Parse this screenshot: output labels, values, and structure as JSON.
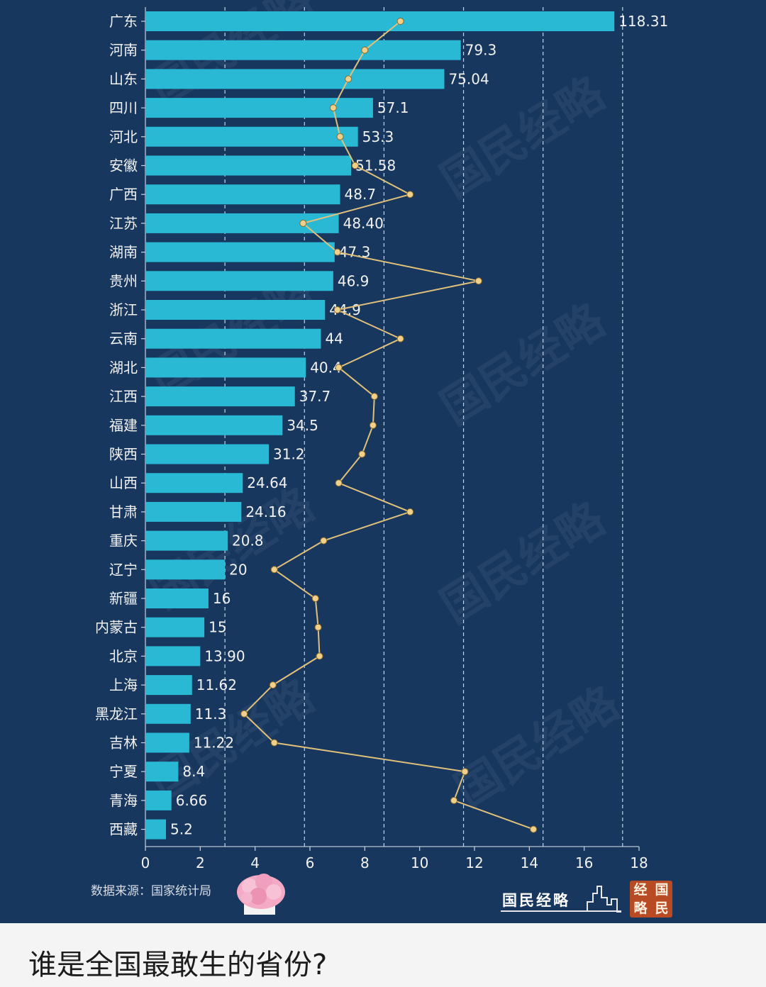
{
  "chart_data": {
    "type": "bar",
    "orientation": "horizontal",
    "categories": [
      "广东",
      "河南",
      "山东",
      "四川",
      "河北",
      "安徽",
      "广西",
      "江苏",
      "湖南",
      "贵州",
      "浙江",
      "云南",
      "湖北",
      "江西",
      "福建",
      "陕西",
      "山西",
      "甘肃",
      "重庆",
      "辽宁",
      "新疆",
      "内蒙古",
      "北京",
      "上海",
      "黑龙江",
      "吉林",
      "宁夏",
      "青海",
      "西藏"
    ],
    "values": [
      17.1,
      11.5,
      10.9,
      8.3,
      7.75,
      7.5,
      7.1,
      7.05,
      6.9,
      6.85,
      6.55,
      6.4,
      5.85,
      5.45,
      5.0,
      4.5,
      3.55,
      3.5,
      3.0,
      2.9,
      2.3,
      2.15,
      2.0,
      1.7,
      1.65,
      1.6,
      1.2,
      0.95,
      0.75
    ],
    "data_labels": [
      "118.31",
      "79.3",
      "75.04",
      "57.1",
      "53.3",
      "51.58",
      "48.7",
      "48.40",
      "47.3",
      "46.9",
      "44.9",
      "44",
      "40.4",
      "37.7",
      "34.5",
      "31.2",
      "24.64",
      "24.16",
      "20.8",
      "20",
      "16",
      "15",
      "13.90",
      "11.62",
      "11.3",
      "11.22",
      "8.4",
      "6.66",
      "5.2"
    ],
    "line_values": [
      9.3,
      8.0,
      7.4,
      6.85,
      7.1,
      7.65,
      9.65,
      5.75,
      7.0,
      12.15,
      7.0,
      9.3,
      7.05,
      8.35,
      8.3,
      7.9,
      7.05,
      9.65,
      6.5,
      4.7,
      6.2,
      6.3,
      6.35,
      4.65,
      3.6,
      4.7,
      11.65,
      11.25,
      14.15
    ],
    "xlim": [
      0,
      18
    ],
    "xticks": [
      "0",
      "2",
      "4",
      "6",
      "8",
      "10",
      "12",
      "14",
      "16",
      "18"
    ],
    "gridlines_at": [
      2.9,
      5.8,
      8.7,
      11.6,
      14.5,
      17.4
    ],
    "grid": "vertical dashed",
    "title": "",
    "xlabel": "",
    "ylabel": ""
  },
  "colors": {
    "background": "#17375e",
    "bar": "#29b9d4",
    "line": "#e0c07a",
    "marker": "#f0d08a",
    "text": "#f2f2f2"
  },
  "footer": {
    "source": "数据来源：国家统计局",
    "brand": "国民经略",
    "seal_chars": [
      "经",
      "国",
      "略",
      "民"
    ],
    "watermark": "国民经略"
  },
  "question": "谁是全国最敢生的省份?"
}
